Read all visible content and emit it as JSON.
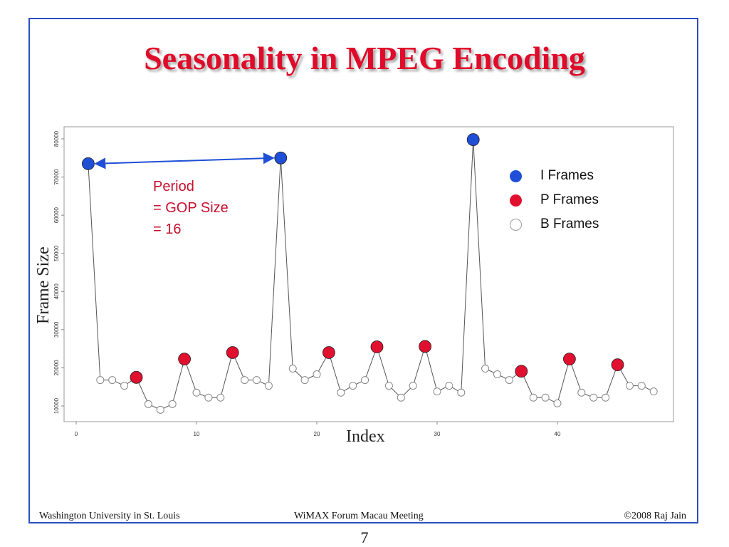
{
  "slide": {
    "title": "Seasonality in MPEG Encoding",
    "page_number": "7",
    "footer": {
      "left": "Washington University in St. Louis",
      "center": "WiMAX Forum Macau Meeting",
      "right": "©2008 Raj Jain"
    },
    "annotation": [
      "Period",
      "= GOP Size",
      "= 16"
    ],
    "colors": {
      "border": "#2a4fbf",
      "title": "#e00a2a",
      "i_frame": "#1f4fd6",
      "p_frame": "#e0102e",
      "b_frame": "#ffffff",
      "annotation": "#c8102e"
    }
  },
  "chart_data": {
    "type": "scatter",
    "title": "",
    "xlabel": "Index",
    "ylabel": "Frame Size",
    "xlim": [
      0,
      49
    ],
    "ylim": [
      8000,
      82000
    ],
    "x_ticks": [
      0,
      10,
      20,
      30,
      40
    ],
    "y_ticks": [
      10000,
      20000,
      30000,
      40000,
      50000,
      60000,
      70000,
      80000
    ],
    "legend_position": "top-right",
    "grid": false,
    "connected_line": true,
    "series": [
      {
        "name": "I Frames",
        "color": "#1f4fd6",
        "points": [
          [
            1,
            73500
          ],
          [
            17,
            75000
          ],
          [
            33,
            79800
          ]
        ]
      },
      {
        "name": "P Frames",
        "color": "#e0102e",
        "points": [
          [
            5,
            17500
          ],
          [
            9,
            22300
          ],
          [
            13,
            24000
          ],
          [
            21,
            24000
          ],
          [
            25,
            25500
          ],
          [
            29,
            25600
          ],
          [
            37,
            19100
          ],
          [
            41,
            22300
          ],
          [
            45,
            20800
          ]
        ]
      },
      {
        "name": "B Frames",
        "color": "#ffffff",
        "points": [
          [
            2,
            16800
          ],
          [
            3,
            16800
          ],
          [
            4,
            15300
          ],
          [
            6,
            10500
          ],
          [
            7,
            9000
          ],
          [
            8,
            10500
          ],
          [
            10,
            13500
          ],
          [
            11,
            12200
          ],
          [
            12,
            12200
          ],
          [
            14,
            16800
          ],
          [
            15,
            16800
          ],
          [
            16,
            15300
          ],
          [
            18,
            19800
          ],
          [
            19,
            16800
          ],
          [
            20,
            18300
          ],
          [
            22,
            13500
          ],
          [
            23,
            15300
          ],
          [
            24,
            16800
          ],
          [
            26,
            15300
          ],
          [
            27,
            12200
          ],
          [
            28,
            15300
          ],
          [
            30,
            13800
          ],
          [
            31,
            15300
          ],
          [
            32,
            13500
          ],
          [
            34,
            19800
          ],
          [
            35,
            18300
          ],
          [
            36,
            16800
          ],
          [
            38,
            12200
          ],
          [
            39,
            12200
          ],
          [
            40,
            10700
          ],
          [
            42,
            13500
          ],
          [
            43,
            12200
          ],
          [
            44,
            12200
          ],
          [
            46,
            15300
          ],
          [
            47,
            15300
          ],
          [
            48,
            13800
          ]
        ]
      }
    ],
    "arrow": {
      "from": [
        1,
        73500
      ],
      "to": [
        17,
        75000
      ]
    }
  }
}
